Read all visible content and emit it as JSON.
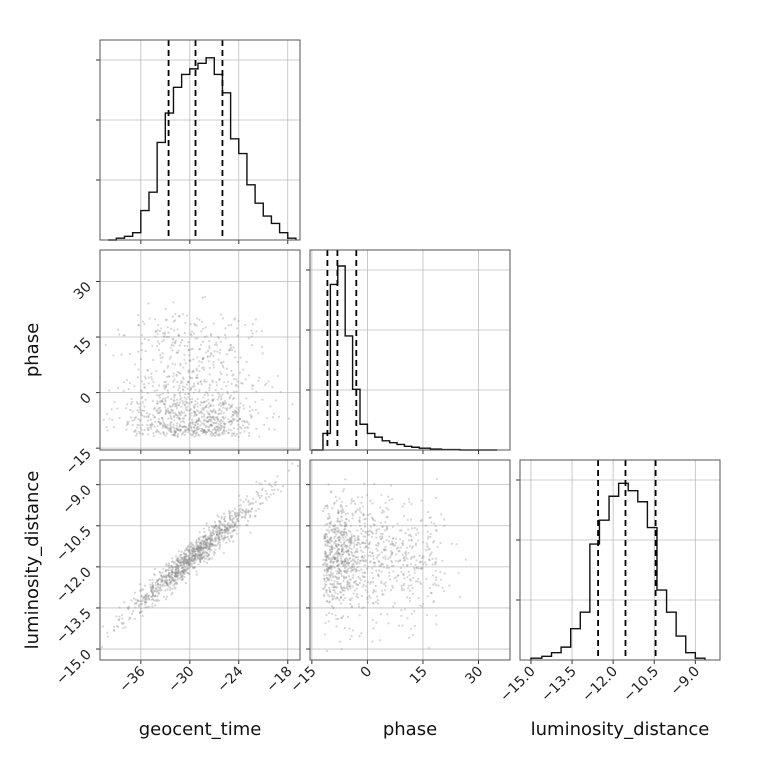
{
  "chart_data": {
    "type": "corner",
    "parameters": [
      "geocent_time",
      "phase",
      "luminosity_distance"
    ],
    "axis_labels": {
      "x": [
        "geocent_time",
        "phase",
        "luminosity_distance"
      ],
      "y": [
        "phase",
        "luminosity_distance"
      ]
    },
    "ranges": {
      "geocent_time": [
        -41.0,
        -16.5
      ],
      "phase": [
        -15.5,
        38.5
      ],
      "luminosity_distance": [
        -15.4,
        -8.1
      ]
    },
    "ticks": {
      "geocent_time": [
        -36,
        -30,
        -24,
        -18
      ],
      "phase": [
        -15,
        0,
        15,
        30
      ],
      "luminosity_distance": [
        -15.0,
        -13.5,
        -12.0,
        -10.5,
        -9.0
      ]
    },
    "tick_labels": {
      "geocent_time": [
        "−36",
        "−30",
        "−24",
        "−18"
      ],
      "phase": [
        "−15",
        "0",
        "15",
        "30"
      ],
      "luminosity_distance": [
        "−15.0",
        "−13.5",
        "−12.0",
        "−10.5",
        "−9.0"
      ]
    },
    "histograms": {
      "geocent_time": {
        "edges": [
          -40.0,
          -39.0,
          -38.0,
          -37.0,
          -36.0,
          -35.0,
          -34.0,
          -33.0,
          -32.0,
          -31.0,
          -30.0,
          -29.0,
          -28.0,
          -27.0,
          -26.0,
          -25.0,
          -24.0,
          -23.0,
          -22.0,
          -21.0,
          -20.0,
          -19.0,
          -18.0,
          -17.0
        ],
        "counts": [
          0.0,
          0.01,
          0.02,
          0.04,
          0.16,
          0.26,
          0.53,
          0.69,
          0.83,
          0.9,
          0.93,
          0.96,
          0.99,
          0.9,
          0.8,
          0.55,
          0.47,
          0.3,
          0.2,
          0.13,
          0.09,
          0.04,
          0.01
        ],
        "quantiles": [
          -32.6,
          -29.3,
          -26.0
        ]
      },
      "phase": {
        "edges": [
          -15,
          -12,
          -10,
          -8,
          -6,
          -4,
          -2,
          0,
          2,
          4,
          6,
          8,
          10,
          12,
          14,
          17,
          20,
          25,
          30,
          35
        ],
        "counts": [
          0.0,
          0.09,
          0.9,
          1.0,
          0.62,
          0.33,
          0.14,
          0.09,
          0.07,
          0.05,
          0.04,
          0.03,
          0.02,
          0.015,
          0.01,
          0.005,
          0.002,
          0.0,
          0.0
        ],
        "quantiles": [
          -10.8,
          -8.1,
          -3.0
        ]
      },
      "luminosity_distance": {
        "edges": [
          -15.0,
          -14.6,
          -14.25,
          -13.9,
          -13.55,
          -13.2,
          -12.85,
          -12.5,
          -12.15,
          -11.8,
          -11.45,
          -11.1,
          -10.75,
          -10.4,
          -10.05,
          -9.7,
          -9.35,
          -9.0,
          -8.65
        ],
        "counts": [
          0.01,
          0.02,
          0.04,
          0.07,
          0.17,
          0.26,
          0.63,
          0.76,
          0.89,
          0.96,
          0.92,
          0.86,
          0.72,
          0.38,
          0.26,
          0.13,
          0.04,
          0.01
        ],
        "quantiles": [
          -12.55,
          -11.55,
          -10.45
        ]
      }
    },
    "scatter_description_free": [],
    "pair_stats": {
      "geocent_time__phase": {
        "mean": [
          -29.5,
          -8.0
        ],
        "sd": [
          4.2,
          7.0
        ],
        "corr": -0.15,
        "core_mean": [
          -29.0,
          -8.0
        ]
      },
      "geocent_time__luminosity_distance": {
        "mean": [
          -29.5,
          -11.6
        ],
        "sd": [
          4.2,
          1.1
        ],
        "corr": 0.97
      },
      "phase__luminosity_distance": {
        "mean": [
          -8.0,
          -11.6
        ],
        "sd": [
          7.0,
          1.1
        ],
        "corr": 0.05
      }
    },
    "grid": true
  },
  "colors": {
    "points": "#8a8a8a",
    "lines": "#000000",
    "contour_fills": [
      "#ffffff",
      "#e6e6e6",
      "#b5b5b5",
      "#6f6f6f",
      "#000000"
    ]
  }
}
